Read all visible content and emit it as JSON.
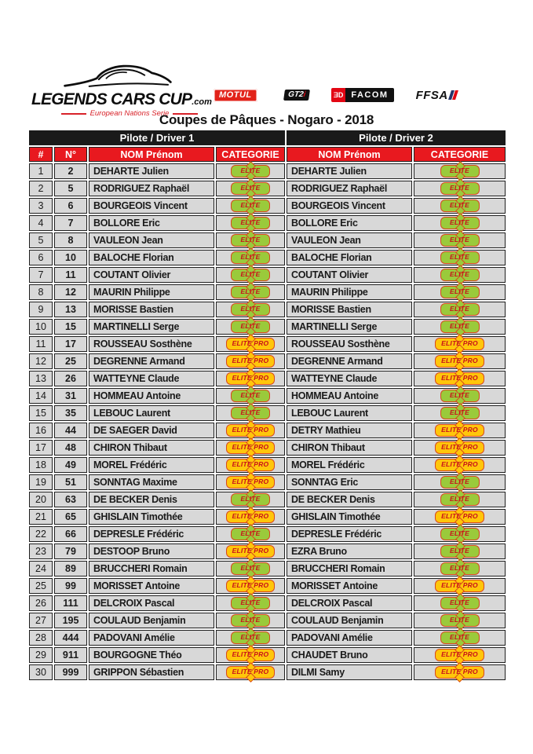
{
  "header": {
    "logo": {
      "name": "LEGENDS CARS CUP",
      "tld": ".com",
      "tagline": "European Nations Serie"
    },
    "sponsors": {
      "motul": "MOTUL",
      "gt2i_main": "GT2",
      "gt2i_accent": "i",
      "facom_icon": "ƎD",
      "facom": "FACOM",
      "ffsa": "FFSA"
    }
  },
  "title": "Coupes de Pâques - Nogaro - 2018",
  "table": {
    "group_headers": [
      "Pilote / Driver 1",
      "Pilote / Driver 2"
    ],
    "columns": [
      "#",
      "N°",
      "NOM Prénom",
      "CATEGORIE",
      "NOM Prénom",
      "CATEGORIE"
    ],
    "category_styles": {
      "ELITE": {
        "fill": "#9ACA3B",
        "text": "#C8101B"
      },
      "ELITE PRO": {
        "fill": "#FFC60B",
        "text": "#C8101B"
      }
    },
    "rows": [
      {
        "pos": "1",
        "num": "2",
        "driver1": "DEHARTE Julien",
        "cat1": "ELITE",
        "driver2": "DEHARTE Julien",
        "cat2": "ELITE"
      },
      {
        "pos": "2",
        "num": "5",
        "driver1": "RODRIGUEZ Raphaël",
        "cat1": "ELITE",
        "driver2": "RODRIGUEZ Raphaël",
        "cat2": "ELITE"
      },
      {
        "pos": "3",
        "num": "6",
        "driver1": "BOURGEOIS Vincent",
        "cat1": "ELITE",
        "driver2": "BOURGEOIS Vincent",
        "cat2": "ELITE"
      },
      {
        "pos": "4",
        "num": "7",
        "driver1": "BOLLORE Eric",
        "cat1": "ELITE",
        "driver2": "BOLLORE Eric",
        "cat2": "ELITE"
      },
      {
        "pos": "5",
        "num": "8",
        "driver1": "VAULEON Jean",
        "cat1": "ELITE",
        "driver2": "VAULEON Jean",
        "cat2": "ELITE"
      },
      {
        "pos": "6",
        "num": "10",
        "driver1": "BALOCHE Florian",
        "cat1": "ELITE",
        "driver2": "BALOCHE Florian",
        "cat2": "ELITE"
      },
      {
        "pos": "7",
        "num": "11",
        "driver1": "COUTANT Olivier",
        "cat1": "ELITE",
        "driver2": "COUTANT Olivier",
        "cat2": "ELITE"
      },
      {
        "pos": "8",
        "num": "12",
        "driver1": "MAURIN Philippe",
        "cat1": "ELITE",
        "driver2": "MAURIN Philippe",
        "cat2": "ELITE"
      },
      {
        "pos": "9",
        "num": "13",
        "driver1": "MORISSE Bastien",
        "cat1": "ELITE",
        "driver2": "MORISSE Bastien",
        "cat2": "ELITE"
      },
      {
        "pos": "10",
        "num": "15",
        "driver1": "MARTINELLI Serge",
        "cat1": "ELITE",
        "driver2": "MARTINELLI Serge",
        "cat2": "ELITE"
      },
      {
        "pos": "11",
        "num": "17",
        "driver1": "ROUSSEAU Sosthène",
        "cat1": "ELITE PRO",
        "driver2": "ROUSSEAU Sosthène",
        "cat2": "ELITE PRO"
      },
      {
        "pos": "12",
        "num": "25",
        "driver1": "DEGRENNE Armand",
        "cat1": "ELITE PRO",
        "driver2": "DEGRENNE Armand",
        "cat2": "ELITE PRO"
      },
      {
        "pos": "13",
        "num": "26",
        "driver1": "WATTEYNE Claude",
        "cat1": "ELITE PRO",
        "driver2": "WATTEYNE Claude",
        "cat2": "ELITE PRO"
      },
      {
        "pos": "14",
        "num": "31",
        "driver1": "HOMMEAU Antoine",
        "cat1": "ELITE",
        "driver2": "HOMMEAU Antoine",
        "cat2": "ELITE"
      },
      {
        "pos": "15",
        "num": "35",
        "driver1": "LEBOUC Laurent",
        "cat1": "ELITE",
        "driver2": "LEBOUC Laurent",
        "cat2": "ELITE"
      },
      {
        "pos": "16",
        "num": "44",
        "driver1": "DE SAEGER David",
        "cat1": "ELITE PRO",
        "driver2": "DETRY Mathieu",
        "cat2": "ELITE PRO"
      },
      {
        "pos": "17",
        "num": "48",
        "driver1": "CHIRON Thibaut",
        "cat1": "ELITE PRO",
        "driver2": "CHIRON Thibaut",
        "cat2": "ELITE PRO"
      },
      {
        "pos": "18",
        "num": "49",
        "driver1": "MOREL Frédéric",
        "cat1": "ELITE PRO",
        "driver2": "MOREL Frédéric",
        "cat2": "ELITE PRO"
      },
      {
        "pos": "19",
        "num": "51",
        "driver1": "SONNTAG Maxime",
        "cat1": "ELITE PRO",
        "driver2": "SONNTAG Eric",
        "cat2": "ELITE"
      },
      {
        "pos": "20",
        "num": "63",
        "driver1": "DE BECKER Denis",
        "cat1": "ELITE",
        "driver2": "DE BECKER Denis",
        "cat2": "ELITE"
      },
      {
        "pos": "21",
        "num": "65",
        "driver1": "GHISLAIN Timothée",
        "cat1": "ELITE PRO",
        "driver2": "GHISLAIN Timothée",
        "cat2": "ELITE PRO"
      },
      {
        "pos": "22",
        "num": "66",
        "driver1": "DEPRESLE Frédéric",
        "cat1": "ELITE",
        "driver2": "DEPRESLE Frédéric",
        "cat2": "ELITE"
      },
      {
        "pos": "23",
        "num": "79",
        "driver1": "DESTOOP Bruno",
        "cat1": "ELITE PRO",
        "driver2": "EZRA Bruno",
        "cat2": "ELITE"
      },
      {
        "pos": "24",
        "num": "89",
        "driver1": "BRUCCHERI Romain",
        "cat1": "ELITE",
        "driver2": "BRUCCHERI Romain",
        "cat2": "ELITE"
      },
      {
        "pos": "25",
        "num": "99",
        "driver1": "MORISSET Antoine",
        "cat1": "ELITE PRO",
        "driver2": "MORISSET Antoine",
        "cat2": "ELITE PRO"
      },
      {
        "pos": "26",
        "num": "111",
        "driver1": "DELCROIX Pascal",
        "cat1": "ELITE",
        "driver2": "DELCROIX Pascal",
        "cat2": "ELITE"
      },
      {
        "pos": "27",
        "num": "195",
        "driver1": "COULAUD Benjamin",
        "cat1": "ELITE",
        "driver2": "COULAUD Benjamin",
        "cat2": "ELITE"
      },
      {
        "pos": "28",
        "num": "444",
        "driver1": "PADOVANI Amélie",
        "cat1": "ELITE",
        "driver2": "PADOVANI Amélie",
        "cat2": "ELITE"
      },
      {
        "pos": "29",
        "num": "911",
        "driver1": "BOURGOGNE Théo",
        "cat1": "ELITE PRO",
        "driver2": "CHAUDET Bruno",
        "cat2": "ELITE PRO"
      },
      {
        "pos": "30",
        "num": "999",
        "driver1": "GRIPPON Sébastien",
        "cat1": "ELITE PRO",
        "driver2": "DILMI Samy",
        "cat2": "ELITE PRO"
      }
    ]
  },
  "colors": {
    "header_red": "#E8191F",
    "header_black": "#1A1A1A",
    "cell_gray": "#D8D8D8",
    "cell_border": "#1F1F1F",
    "badge_border": "#D8481D",
    "badge_text": "#C8101B",
    "logo_red": "#D8232A",
    "motul_red": "#E2231A",
    "ffsa_blue": "#24356B",
    "ffsa_red": "#E30613"
  }
}
